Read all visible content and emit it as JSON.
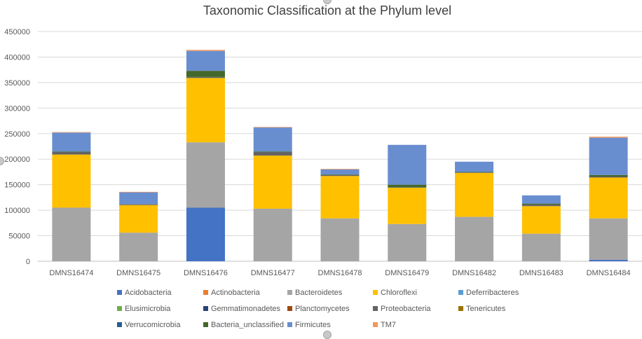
{
  "chart_data": {
    "type": "bar",
    "stacked": true,
    "title": "Taxonomic Classification at the Phylum level",
    "xlabel": "",
    "ylabel": "",
    "ylim": [
      0,
      450000
    ],
    "yticks": [
      0,
      50000,
      100000,
      150000,
      200000,
      250000,
      300000,
      350000,
      400000,
      450000
    ],
    "ytick_labels": [
      "0",
      "50000",
      "100000",
      "150000",
      "200000",
      "250000",
      "300000",
      "350000",
      "400000",
      "450000"
    ],
    "grid": true,
    "legend_position": "bottom",
    "categories": [
      "DMNS16474",
      "DMNS16475",
      "DMNS16476",
      "DMNS16477",
      "DMNS16478",
      "DMNS16479",
      "DMNS16482",
      "DMNS16483",
      "DMNS16484"
    ],
    "series": [
      {
        "name": "Acidobacteria",
        "color": "#4472c4",
        "values": [
          0,
          0,
          105000,
          0,
          0,
          0,
          0,
          0,
          3000
        ]
      },
      {
        "name": "Actinobacteria",
        "color": "#ed7d31",
        "values": [
          0,
          0,
          0,
          0,
          0,
          0,
          0,
          0,
          0
        ]
      },
      {
        "name": "Bacteroidetes",
        "color": "#a5a5a5",
        "values": [
          105000,
          56000,
          128000,
          103000,
          84000,
          73000,
          87000,
          54000,
          81000
        ]
      },
      {
        "name": "Chloroflexi",
        "color": "#ffc000",
        "values": [
          104000,
          54000,
          126000,
          104000,
          83000,
          71000,
          86000,
          54000,
          80000
        ]
      },
      {
        "name": "Deferribacteres",
        "color": "#5b9bd5",
        "values": [
          0,
          0,
          0,
          0,
          0,
          0,
          0,
          0,
          0
        ]
      },
      {
        "name": "Elusimicrobia",
        "color": "#70ad47",
        "values": [
          0,
          0,
          0,
          0,
          0,
          0,
          0,
          0,
          0
        ]
      },
      {
        "name": "Gemmatimonadetes",
        "color": "#264478",
        "values": [
          0,
          0,
          0,
          0,
          0,
          0,
          0,
          0,
          0
        ]
      },
      {
        "name": "Planctomycetes",
        "color": "#9e480e",
        "values": [
          0,
          0,
          0,
          0,
          0,
          0,
          0,
          0,
          0
        ]
      },
      {
        "name": "Proteobacteria",
        "color": "#636363",
        "values": [
          5000,
          1500,
          2000,
          7000,
          2000,
          1000,
          1000,
          3000,
          2000
        ]
      },
      {
        "name": "Tenericutes",
        "color": "#997300",
        "values": [
          0,
          0,
          0,
          0,
          0,
          0,
          0,
          0,
          0
        ]
      },
      {
        "name": "Verrucomicrobia",
        "color": "#255e91",
        "values": [
          0,
          0,
          0,
          0,
          0,
          0,
          0,
          0,
          0
        ]
      },
      {
        "name": "Bacteria_unclassified",
        "color": "#43682b",
        "values": [
          1000,
          500,
          12000,
          1000,
          1000,
          5000,
          1000,
          2000,
          3000
        ]
      },
      {
        "name": "Firmicutes",
        "color": "#698ed0",
        "values": [
          37000,
          23000,
          39000,
          47000,
          10000,
          78000,
          20000,
          16000,
          73000
        ]
      },
      {
        "name": "TM7",
        "color": "#f1975a",
        "values": [
          1000,
          1000,
          2000,
          1000,
          1000,
          0,
          0,
          0,
          2000
        ]
      }
    ]
  }
}
